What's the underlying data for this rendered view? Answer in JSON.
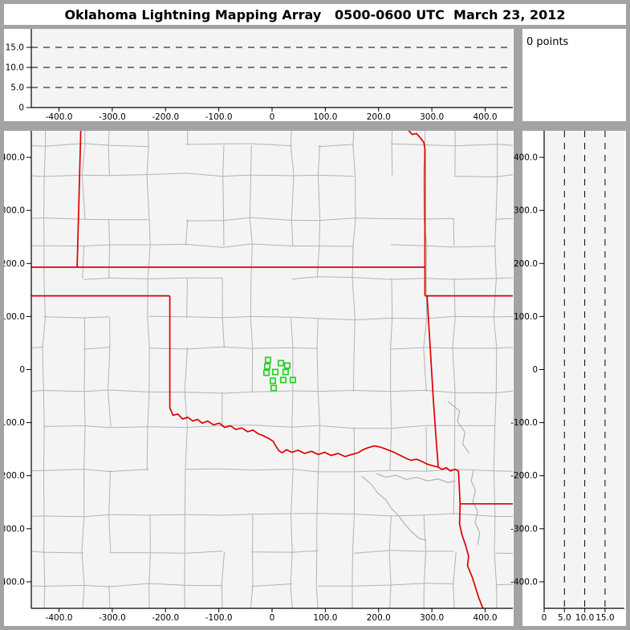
{
  "window": {
    "title": "Oklahoma Lightning Mapping Array   0500-0600 UTC  March 23, 2012"
  },
  "colors": {
    "chrome_gray": "#a3a3a3",
    "panel_bg": "#f4f4f4",
    "axis_black": "#000000",
    "county_gray": "#b2b2b2",
    "river_gray": "#adadad",
    "state_border_red": "#dd0000",
    "station_green": "#22d422",
    "dash_black": "#000000",
    "text_black": "#000000",
    "margin_white": "#ffffff"
  },
  "points_box": {
    "label": "0 points"
  },
  "top_panel": {
    "description": "altitude (km) vs east-west distance (km), 0 points plotted",
    "points_plotted": 0,
    "y_tick_labels": [
      "15.0",
      "10.0",
      "5.0",
      "0"
    ],
    "y_tick_values": [
      15,
      10,
      5,
      0
    ],
    "dash_levels": [
      5,
      10,
      15
    ],
    "x_tick_labels": [
      "-400.0",
      "-300.0",
      "-200.0",
      "-100.0",
      "0",
      "100.0",
      "200.0",
      "300.0",
      "400.0"
    ],
    "x_tick_values": [
      -400,
      -300,
      -200,
      -100,
      0,
      100,
      200,
      300,
      400
    ]
  },
  "map_panel": {
    "description": "plan view map, km east-west vs km north-south, 0 lightning points",
    "points_plotted": 0,
    "xlim": [
      -452,
      452
    ],
    "ylim": [
      -450,
      450
    ],
    "x_tick_labels": [
      "-400.0",
      "-300.0",
      "-200.0",
      "-100.0",
      "0",
      "100.0",
      "200.0",
      "300.0",
      "400.0"
    ],
    "x_tick_values": [
      -400,
      -300,
      -200,
      -100,
      0,
      100,
      200,
      300,
      400
    ],
    "y_tick_labels": [
      "400.0",
      "300.0",
      "200.0",
      "100.0",
      "0",
      "-100.0",
      "-200.0",
      "-300.0",
      "-400.0"
    ],
    "y_tick_values": [
      400,
      300,
      200,
      100,
      0,
      -100,
      -200,
      -300,
      -400
    ],
    "stations": [
      [
        -7.5,
        18.2
      ],
      [
        16.5,
        12.1
      ],
      [
        28.5,
        7.6
      ],
      [
        -9.0,
        6.1
      ],
      [
        -10.5,
        -6.1
      ],
      [
        6.0,
        -4.5
      ],
      [
        25.5,
        -4.5
      ],
      [
        1.5,
        -21.2
      ],
      [
        21.0,
        -19.7
      ],
      [
        39.0,
        -19.7
      ],
      [
        3.0,
        -34.8
      ]
    ],
    "state_borders": [
      [
        [
          -452,
          193
        ],
        [
          287,
          193
        ]
      ],
      [
        [
          -359,
          452
        ],
        [
          -366,
          193
        ]
      ],
      [
        [
          -452,
          139
        ],
        [
          -192,
          139
        ]
      ],
      [
        [
          -192,
          139
        ],
        [
          -192,
          -72
        ]
      ],
      [
        [
          255,
          452
        ],
        [
          263,
          443
        ],
        [
          271,
          445
        ],
        [
          279,
          436
        ],
        [
          285,
          428
        ],
        [
          287,
          415
        ],
        [
          287,
          139
        ]
      ],
      [
        [
          287,
          139
        ],
        [
          452,
          139
        ]
      ],
      [
        [
          291,
          139
        ],
        [
          297,
          40
        ],
        [
          303,
          -60
        ],
        [
          308,
          -130
        ],
        [
          312,
          -184
        ]
      ],
      [
        [
          -192,
          -72
        ],
        [
          -186,
          -86
        ],
        [
          -177,
          -84
        ],
        [
          -168,
          -93
        ],
        [
          -158,
          -90
        ],
        [
          -149,
          -97
        ],
        [
          -140,
          -94
        ],
        [
          -131,
          -101
        ],
        [
          -121,
          -97
        ],
        [
          -110,
          -104
        ],
        [
          -99,
          -101
        ],
        [
          -89,
          -109
        ],
        [
          -78,
          -106
        ],
        [
          -68,
          -113
        ],
        [
          -57,
          -110
        ],
        [
          -46,
          -117
        ],
        [
          -36,
          -114
        ],
        [
          -26,
          -121
        ],
        [
          -16,
          -125
        ],
        [
          -6,
          -130
        ],
        [
          2,
          -135
        ],
        [
          7,
          -144
        ],
        [
          13,
          -153
        ],
        [
          19,
          -157
        ],
        [
          27,
          -151
        ],
        [
          37,
          -156
        ],
        [
          49,
          -152
        ],
        [
          61,
          -158
        ],
        [
          74,
          -154
        ],
        [
          87,
          -160
        ],
        [
          99,
          -156
        ],
        [
          111,
          -162
        ],
        [
          124,
          -158
        ],
        [
          137,
          -164
        ],
        [
          149,
          -160
        ],
        [
          161,
          -157
        ],
        [
          171,
          -151
        ],
        [
          181,
          -147
        ],
        [
          192,
          -144
        ],
        [
          203,
          -146
        ],
        [
          214,
          -150
        ],
        [
          227,
          -155
        ],
        [
          239,
          -161
        ],
        [
          251,
          -167
        ],
        [
          261,
          -171
        ],
        [
          271,
          -169
        ],
        [
          281,
          -173
        ],
        [
          291,
          -178
        ],
        [
          301,
          -181
        ],
        [
          312,
          -184
        ]
      ],
      [
        [
          312,
          -184
        ],
        [
          319,
          -188
        ],
        [
          327,
          -185
        ],
        [
          335,
          -191
        ],
        [
          343,
          -188
        ],
        [
          350,
          -191
        ]
      ],
      [
        [
          350,
          -191
        ],
        [
          353,
          -253
        ]
      ],
      [
        [
          353,
          -253
        ],
        [
          452,
          -253
        ]
      ],
      [
        [
          353,
          -253
        ],
        [
          352,
          -290
        ],
        [
          356,
          -310
        ],
        [
          363,
          -330
        ],
        [
          369,
          -352
        ],
        [
          367,
          -370
        ],
        [
          376,
          -392
        ],
        [
          383,
          -414
        ],
        [
          388,
          -430
        ],
        [
          396,
          -450
        ]
      ]
    ],
    "rivers": [
      [
        [
          196,
          -196
        ],
        [
          214,
          -203
        ],
        [
          232,
          -199
        ],
        [
          252,
          -207
        ],
        [
          272,
          -203
        ],
        [
          292,
          -210
        ],
        [
          312,
          -206
        ],
        [
          330,
          -213
        ],
        [
          344,
          -210
        ]
      ],
      [
        [
          168,
          -201
        ],
        [
          185,
          -215
        ],
        [
          198,
          -232
        ],
        [
          214,
          -246
        ],
        [
          224,
          -262
        ],
        [
          238,
          -276
        ],
        [
          250,
          -292
        ],
        [
          262,
          -306
        ],
        [
          276,
          -318
        ],
        [
          290,
          -322
        ]
      ],
      [
        [
          378,
          -190
        ],
        [
          374,
          -210
        ],
        [
          382,
          -228
        ],
        [
          377,
          -248
        ],
        [
          386,
          -268
        ],
        [
          381,
          -288
        ],
        [
          390,
          -308
        ],
        [
          386,
          -330
        ]
      ],
      [
        [
          330,
          -60
        ],
        [
          352,
          -78
        ],
        [
          348,
          -98
        ],
        [
          362,
          -118
        ],
        [
          358,
          -140
        ],
        [
          370,
          -158
        ]
      ]
    ],
    "counties": {
      "seed": 9,
      "col_min": 44,
      "col_var": 36,
      "row_min": 48,
      "row_var": 40,
      "keep_prob": 0.82,
      "jitter": 7
    }
  },
  "right_panel": {
    "description": "north-south distance (km) vs altitude (km), 0 points plotted",
    "points_plotted": 0,
    "x_tick_labels": [
      "0",
      "5.0",
      "10.0",
      "15.0"
    ],
    "x_tick_values": [
      0,
      5,
      10,
      15
    ],
    "dash_levels": [
      5,
      10,
      15
    ],
    "y_tick_labels": [
      "400.0",
      "300.0",
      "200.0",
      "100.0",
      "0",
      "-100.0",
      "-200.0",
      "-300.0",
      "-400.0"
    ],
    "y_tick_values": [
      400,
      300,
      200,
      100,
      0,
      -100,
      -200,
      -300,
      -400
    ]
  }
}
